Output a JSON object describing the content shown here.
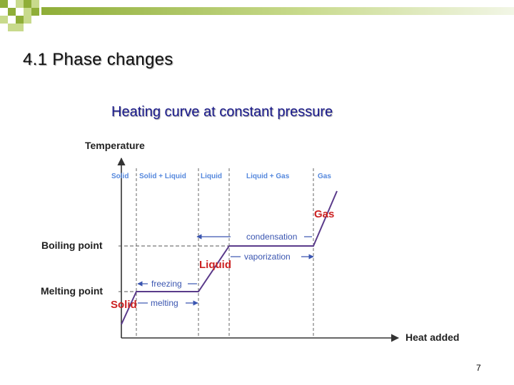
{
  "slide": {
    "title": "4.1 Phase changes",
    "page_number": "7"
  },
  "diagram": {
    "title": "Heating curve at constant pressure",
    "y_axis_label": "Temperature",
    "x_axis_label": "Heat added",
    "boiling_label": "Boiling point",
    "melting_label": "Melting point",
    "regions": [
      "Solid",
      "Solid + Liquid",
      "Liquid",
      "Liquid + Gas",
      "Gas"
    ],
    "phase_solid": "Solid",
    "phase_liquid": "Liquid",
    "phase_gas": "Gas",
    "freezing": "freezing",
    "melting": "melting",
    "condensation": "condensation",
    "vaporization": "vaporization"
  },
  "colors": {
    "header_green": "#8fae38",
    "header_green_light": "#c8da8c",
    "region_blue": "#5588dd",
    "phase_red": "#cc2222",
    "curve_purple": "#5a3a8a",
    "arrow_blue": "#3a55b0"
  }
}
